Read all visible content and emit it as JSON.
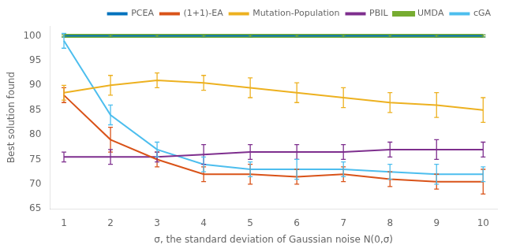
{
  "chart_data": {
    "type": "line",
    "x": [
      1,
      2,
      3,
      4,
      5,
      6,
      7,
      8,
      9,
      10
    ],
    "series": [
      {
        "name": "PCEA",
        "color": "#0072BD",
        "values": [
          100,
          100,
          100,
          100,
          100,
          100,
          100,
          100,
          100,
          100
        ],
        "errors": [
          0.2,
          0.2,
          0.2,
          0.2,
          0.2,
          0.2,
          0.2,
          0.2,
          0.2,
          0.2
        ]
      },
      {
        "name": "(1+1)-EA",
        "color": "#D95319",
        "values": [
          88.0,
          79.0,
          75.0,
          72.0,
          72.0,
          71.5,
          72.0,
          71.0,
          70.5,
          70.5
        ],
        "errors": [
          1.5,
          2.5,
          1.5,
          1.5,
          2.0,
          1.5,
          1.5,
          1.5,
          1.5,
          2.5
        ]
      },
      {
        "name": "Mutation-Population",
        "color": "#EDB120",
        "values": [
          88.5,
          90.0,
          91.0,
          90.5,
          89.5,
          88.5,
          87.5,
          86.5,
          86.0,
          85.0
        ],
        "errors": [
          1.5,
          2.0,
          1.5,
          1.5,
          2.0,
          2.0,
          2.0,
          2.0,
          2.5,
          2.5
        ]
      },
      {
        "name": "PBIL",
        "color": "#7E2F8E",
        "values": [
          75.5,
          75.5,
          75.5,
          76.0,
          76.5,
          76.5,
          76.5,
          77.0,
          77.0,
          77.0
        ],
        "errors": [
          1.0,
          1.5,
          1.0,
          2.0,
          1.5,
          1.5,
          1.5,
          1.5,
          2.0,
          1.5
        ]
      },
      {
        "name": "UMDA",
        "color": "#77AC30",
        "values": [
          100,
          100,
          100,
          100,
          100,
          100,
          100,
          100,
          100,
          100
        ],
        "errors": [
          0.2,
          0.2,
          0.2,
          0.2,
          0.2,
          0.2,
          0.2,
          0.2,
          0.2,
          0.2
        ]
      },
      {
        "name": "cGA",
        "color": "#4DBEEE",
        "values": [
          99.0,
          84.0,
          77.0,
          74.0,
          73.0,
          73.0,
          73.0,
          72.5,
          72.0,
          72.0
        ],
        "errors": [
          1.5,
          2.0,
          1.5,
          1.5,
          1.5,
          2.0,
          1.5,
          1.5,
          2.0,
          1.5
        ]
      }
    ],
    "xlabel": "σ, the standard deviation of Gaussian noise N(0,σ)",
    "ylabel": "Best solution found",
    "xlim": [
      0.7,
      10.3
    ],
    "ylim": [
      65,
      102
    ],
    "xticks": [
      1,
      2,
      3,
      4,
      5,
      6,
      7,
      8,
      9,
      10
    ],
    "yticks": [
      65,
      70,
      75,
      80,
      85,
      90,
      95,
      100
    ],
    "grid": false,
    "legend": "upper right"
  }
}
